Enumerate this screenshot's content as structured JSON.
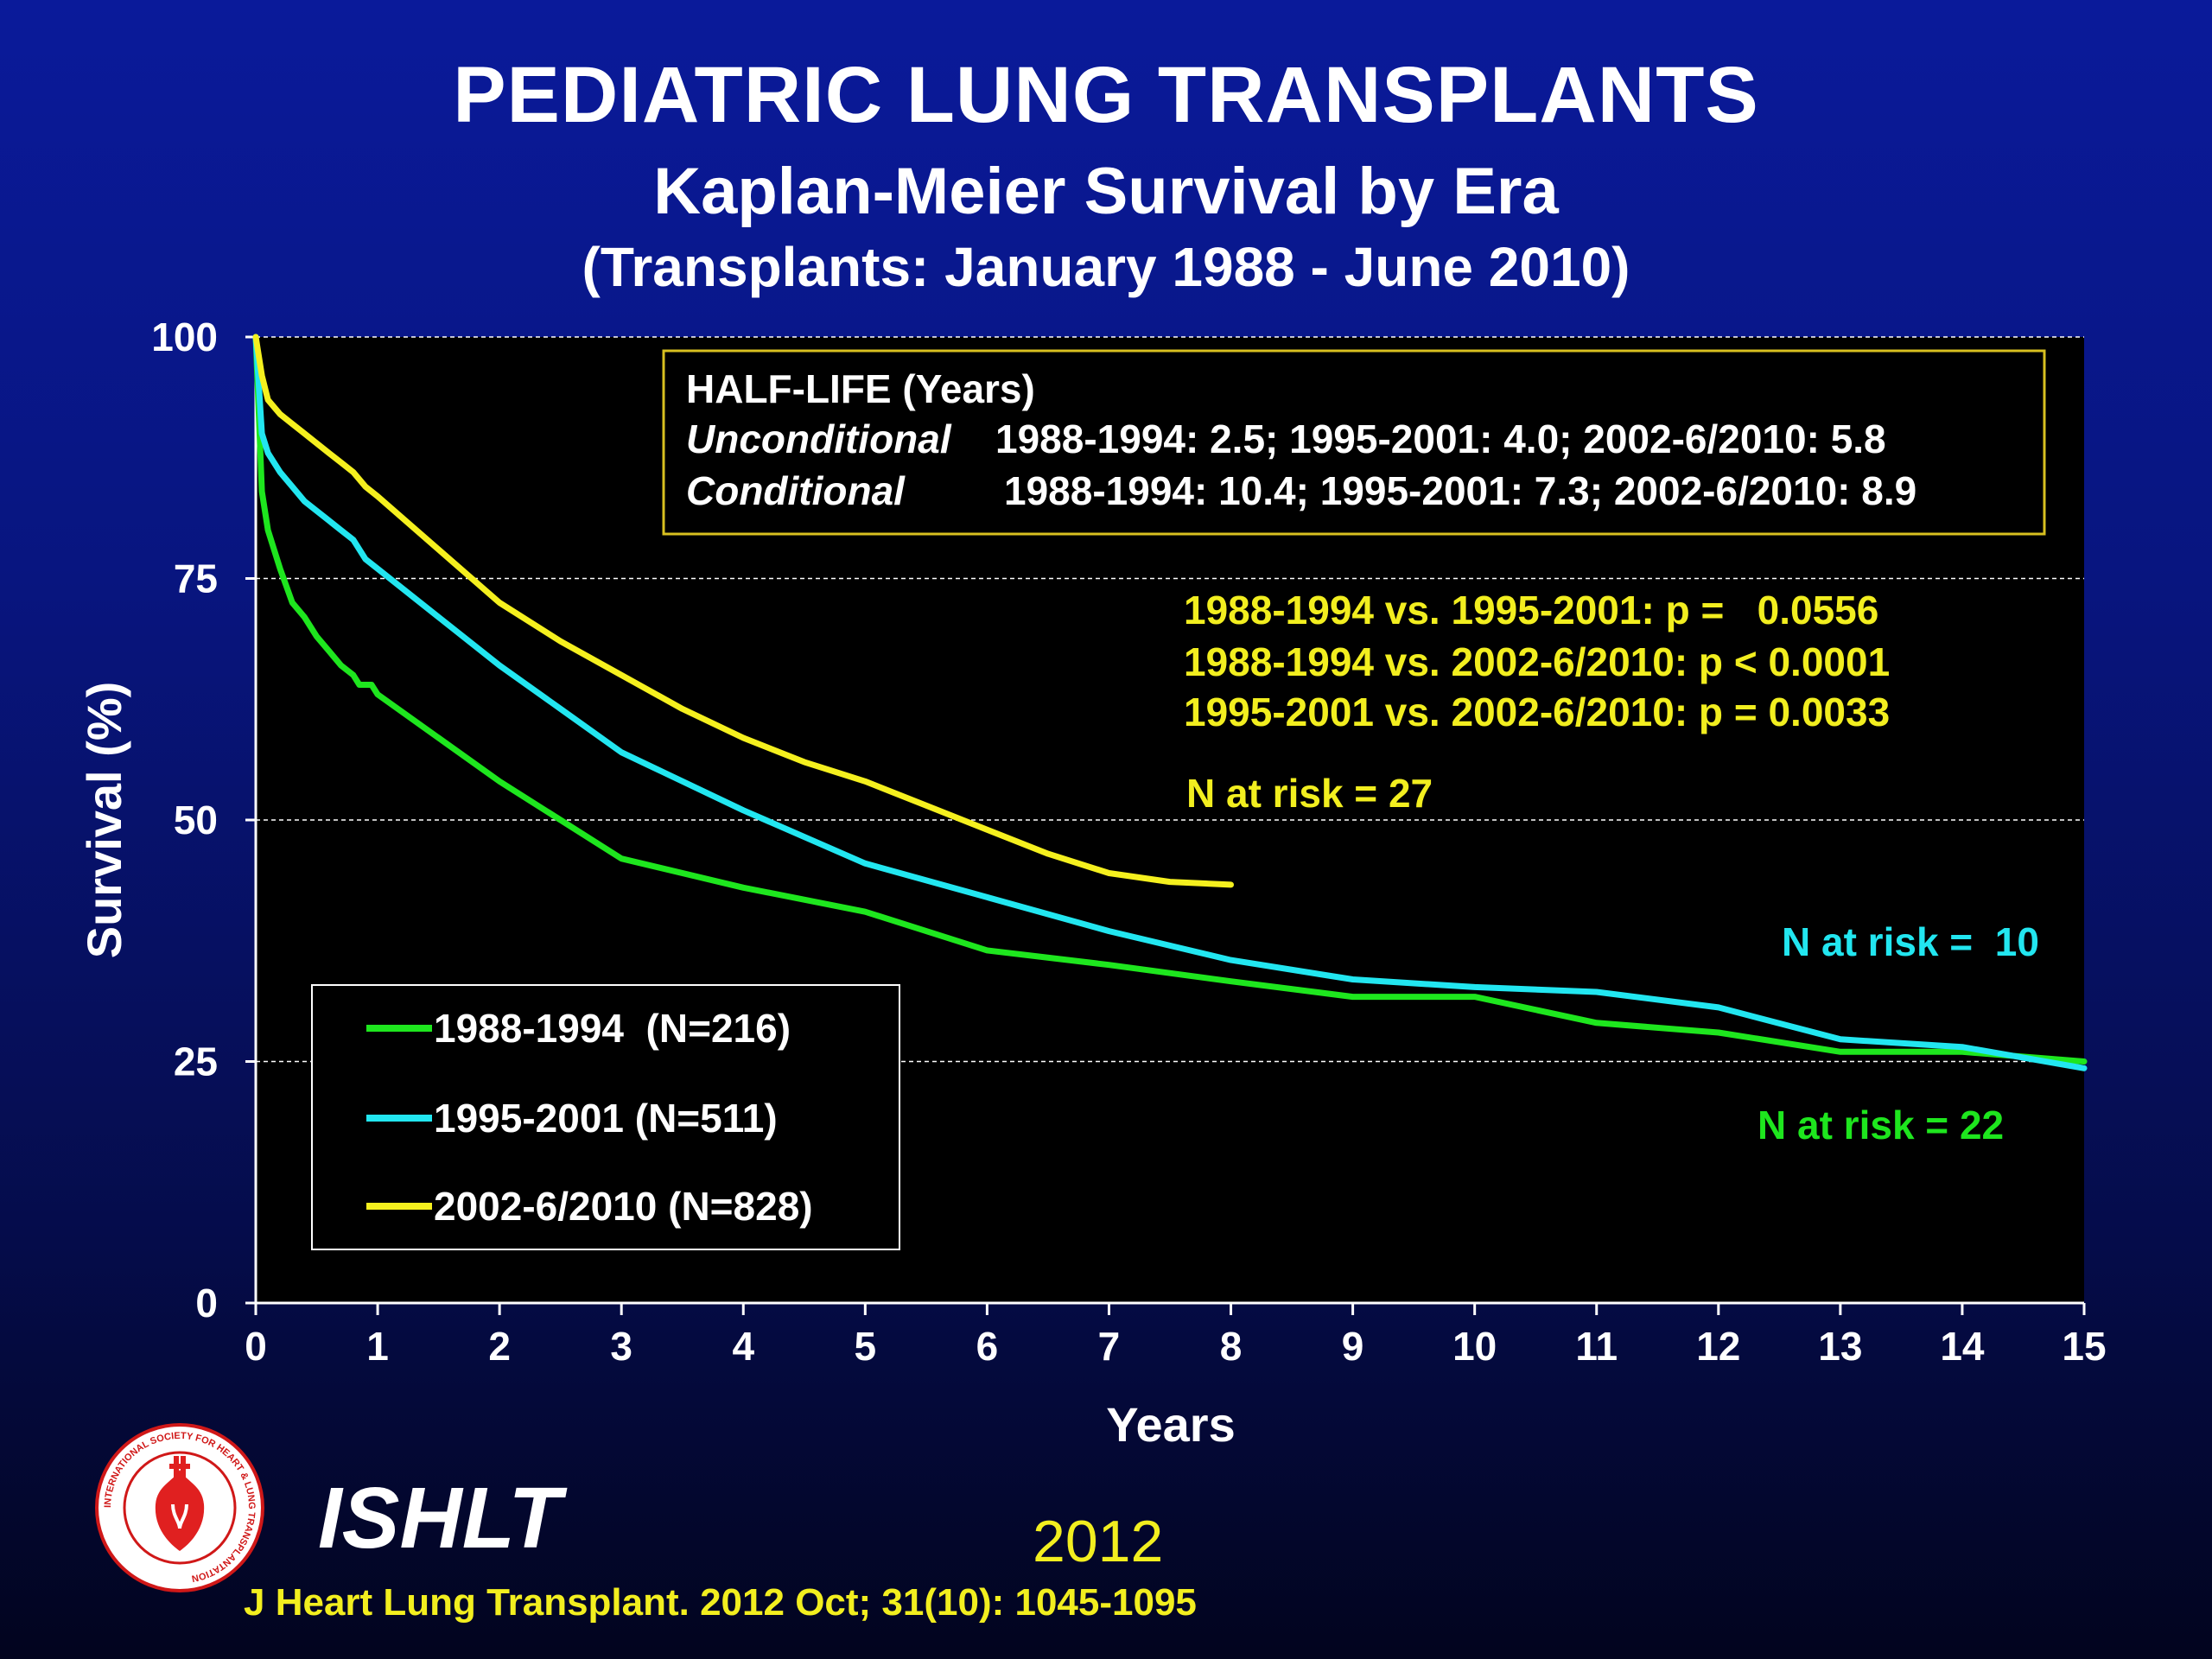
{
  "header": {
    "title": "PEDIATRIC LUNG TRANSPLANTS",
    "subtitle": "Kaplan-Meier Survival by Era",
    "subtitle2": "(Transplants: January 1988 - June 2010)"
  },
  "chart_data": {
    "type": "line",
    "xlabel": "Years",
    "ylabel": "Survival (%)",
    "xlim": [
      0,
      15
    ],
    "ylim": [
      0,
      100
    ],
    "x_ticks": [
      "0",
      "1",
      "2",
      "3",
      "4",
      "5",
      "6",
      "7",
      "8",
      "9",
      "10",
      "11",
      "12",
      "13",
      "14",
      "15"
    ],
    "y_ticks": [
      "0",
      "25",
      "50",
      "75",
      "100"
    ],
    "grid": "horizontal dashed at 25, 50, 75, 100",
    "series": [
      {
        "name": "1988-1994  (N=216)",
        "color": "#1ee61e",
        "x": [
          0,
          0.05,
          0.1,
          0.2,
          0.3,
          0.4,
          0.5,
          0.6,
          0.7,
          0.8,
          0.85,
          0.9,
          0.95,
          1,
          1.5,
          2,
          2.5,
          3,
          4,
          5,
          6,
          7,
          8,
          9,
          10,
          11,
          12,
          13,
          14,
          15
        ],
        "y": [
          100,
          84,
          80,
          76,
          72.5,
          71,
          69,
          67.5,
          66,
          65,
          64,
          64,
          64,
          63,
          58.5,
          54,
          50,
          46,
          43,
          40.5,
          36.5,
          35,
          33.3,
          31.7,
          31.7,
          29,
          28,
          26,
          26,
          25
        ]
      },
      {
        "name": "1995-2001 (N=511)",
        "color": "#22e6f0",
        "x": [
          0,
          0.05,
          0.1,
          0.2,
          0.3,
          0.4,
          0.5,
          0.6,
          0.7,
          0.8,
          0.9,
          1,
          1.5,
          2,
          2.5,
          3,
          4,
          5,
          6,
          7,
          8,
          9,
          10,
          11,
          12,
          13,
          14,
          15
        ],
        "y": [
          100,
          90,
          88,
          86,
          84.5,
          83,
          82,
          81,
          80,
          79,
          77,
          76,
          71,
          66,
          61.5,
          57,
          51,
          45.5,
          42,
          38.5,
          35.5,
          33.5,
          32.7,
          32.2,
          30.6,
          27.3,
          26.5,
          24.3
        ]
      },
      {
        "name": "2002-6/2010 (N=828)",
        "color": "#f5f01e",
        "x": [
          0,
          0.05,
          0.1,
          0.2,
          0.3,
          0.4,
          0.5,
          0.6,
          0.7,
          0.8,
          0.9,
          1,
          1.5,
          2,
          2.5,
          3,
          3.5,
          4,
          4.5,
          5,
          5.5,
          6,
          6.5,
          7,
          7.5,
          8
        ],
        "y": [
          100,
          96,
          93.5,
          92,
          91,
          90,
          89,
          88,
          87,
          86,
          84.5,
          83.5,
          78,
          72.5,
          68.5,
          65,
          61.5,
          58.5,
          56,
          54,
          51.5,
          49,
          46.5,
          44.5,
          43.6,
          43.3
        ]
      }
    ],
    "annotations": {
      "half_life_title": "HALF-LIFE (Years)",
      "unconditional_label": "Unconditional",
      "unconditional_values": "1988-1994: 2.5; 1995-2001: 4.0; 2002-6/2010: 5.8",
      "conditional_label": "Conditional",
      "conditional_values": "1988-1994: 10.4; 1995-2001: 7.3; 2002-6/2010: 8.9",
      "pvalues": [
        "1988-1994 vs. 1995-2001: p =   0.0556",
        "1988-1994 vs. 2002-6/2010: p < 0.0001",
        "1995-2001 vs. 2002-6/2010: p = 0.0033"
      ],
      "risk_yellow": "N at risk = 27",
      "risk_cyan": "N at risk =  10",
      "risk_green": "N at risk = 22"
    }
  },
  "footer": {
    "brand": "ISHLT",
    "year": "2012",
    "citation": "J Heart Lung Transplant.  2012 Oct; 31(10): 1045-1095",
    "logo_ring_text": "INTERNATIONAL SOCIETY FOR HEART & LUNG TRANSPLANTATION"
  },
  "colors": {
    "background_top": "#0a1a9a",
    "background_bottom": "#02041e",
    "annotation_yellow": "#f2ee1f",
    "half_life_box_border": "#d8c020"
  }
}
